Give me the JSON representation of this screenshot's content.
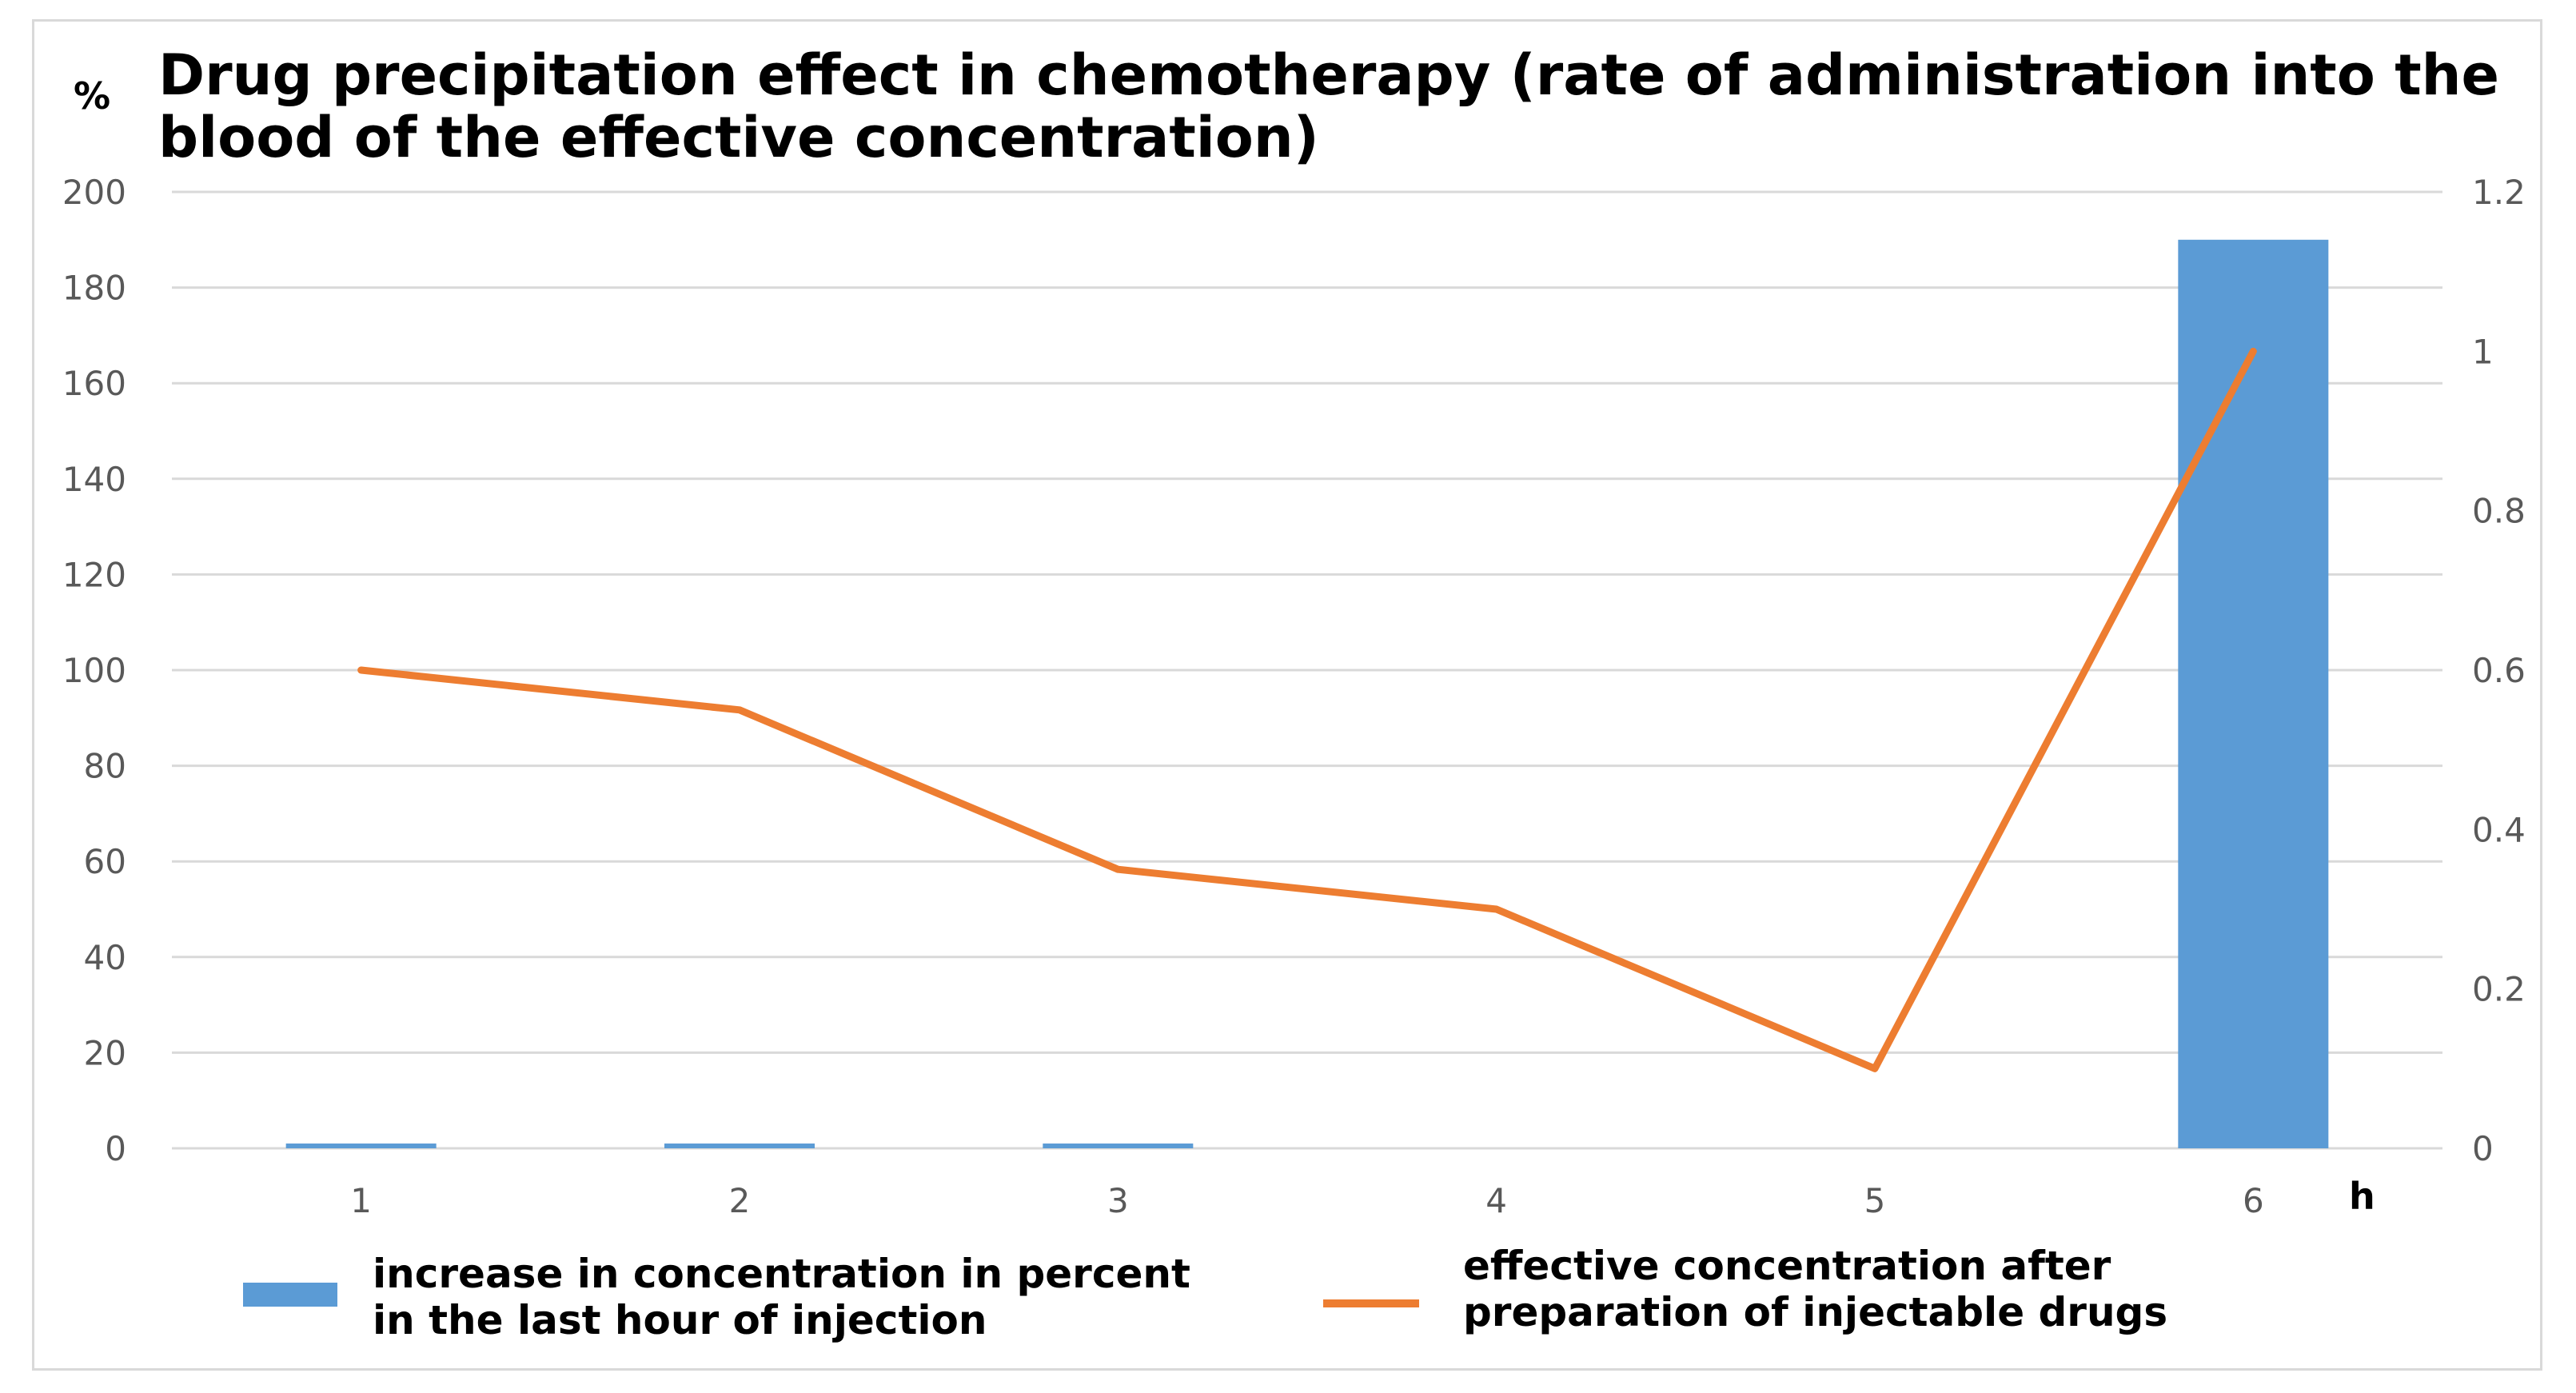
{
  "chart_data": {
    "type": "bar",
    "title_lines": [
      "Drug precipitation effect in chemotherapy (rate of administration into the",
      "blood of the effective concentration)"
    ],
    "y_unit_label": "%",
    "x_unit_label": "h",
    "categories": [
      "1",
      "2",
      "3",
      "4",
      "5",
      "6"
    ],
    "y_left": {
      "lim": [
        0,
        200
      ],
      "ticks": [
        0,
        20,
        40,
        60,
        80,
        100,
        120,
        140,
        160,
        180,
        200
      ],
      "tick_labels": [
        "0",
        "20",
        "40",
        "60",
        "80",
        "100",
        "120",
        "140",
        "160",
        "180",
        "200"
      ]
    },
    "y_right": {
      "lim": [
        0,
        1.2
      ],
      "ticks": [
        0,
        0.2,
        0.4,
        0.6,
        0.8,
        1,
        1.2
      ],
      "tick_labels": [
        "0",
        "0.2",
        "0.4",
        "0.6",
        "0.8",
        "1",
        "1.2"
      ]
    },
    "series": [
      {
        "name": "increase in concentration in percent in the last hour of injection",
        "legend_lines": [
          "increase in concentration in percent",
          "in the last hour of injection"
        ],
        "type": "bar",
        "axis": "left",
        "color": "#5b9bd5",
        "values": [
          1,
          1,
          1,
          0,
          0,
          190
        ]
      },
      {
        "name": "effective concentration after preparation of injectable drugs",
        "legend_lines": [
          "effective concentration after",
          "preparation of injectable drugs"
        ],
        "type": "line",
        "axis": "right",
        "color": "#ed7d31",
        "values": [
          0.6,
          0.55,
          0.35,
          0.3,
          0.1,
          1.0
        ]
      }
    ],
    "grid": true,
    "legend_position": "bottom"
  }
}
